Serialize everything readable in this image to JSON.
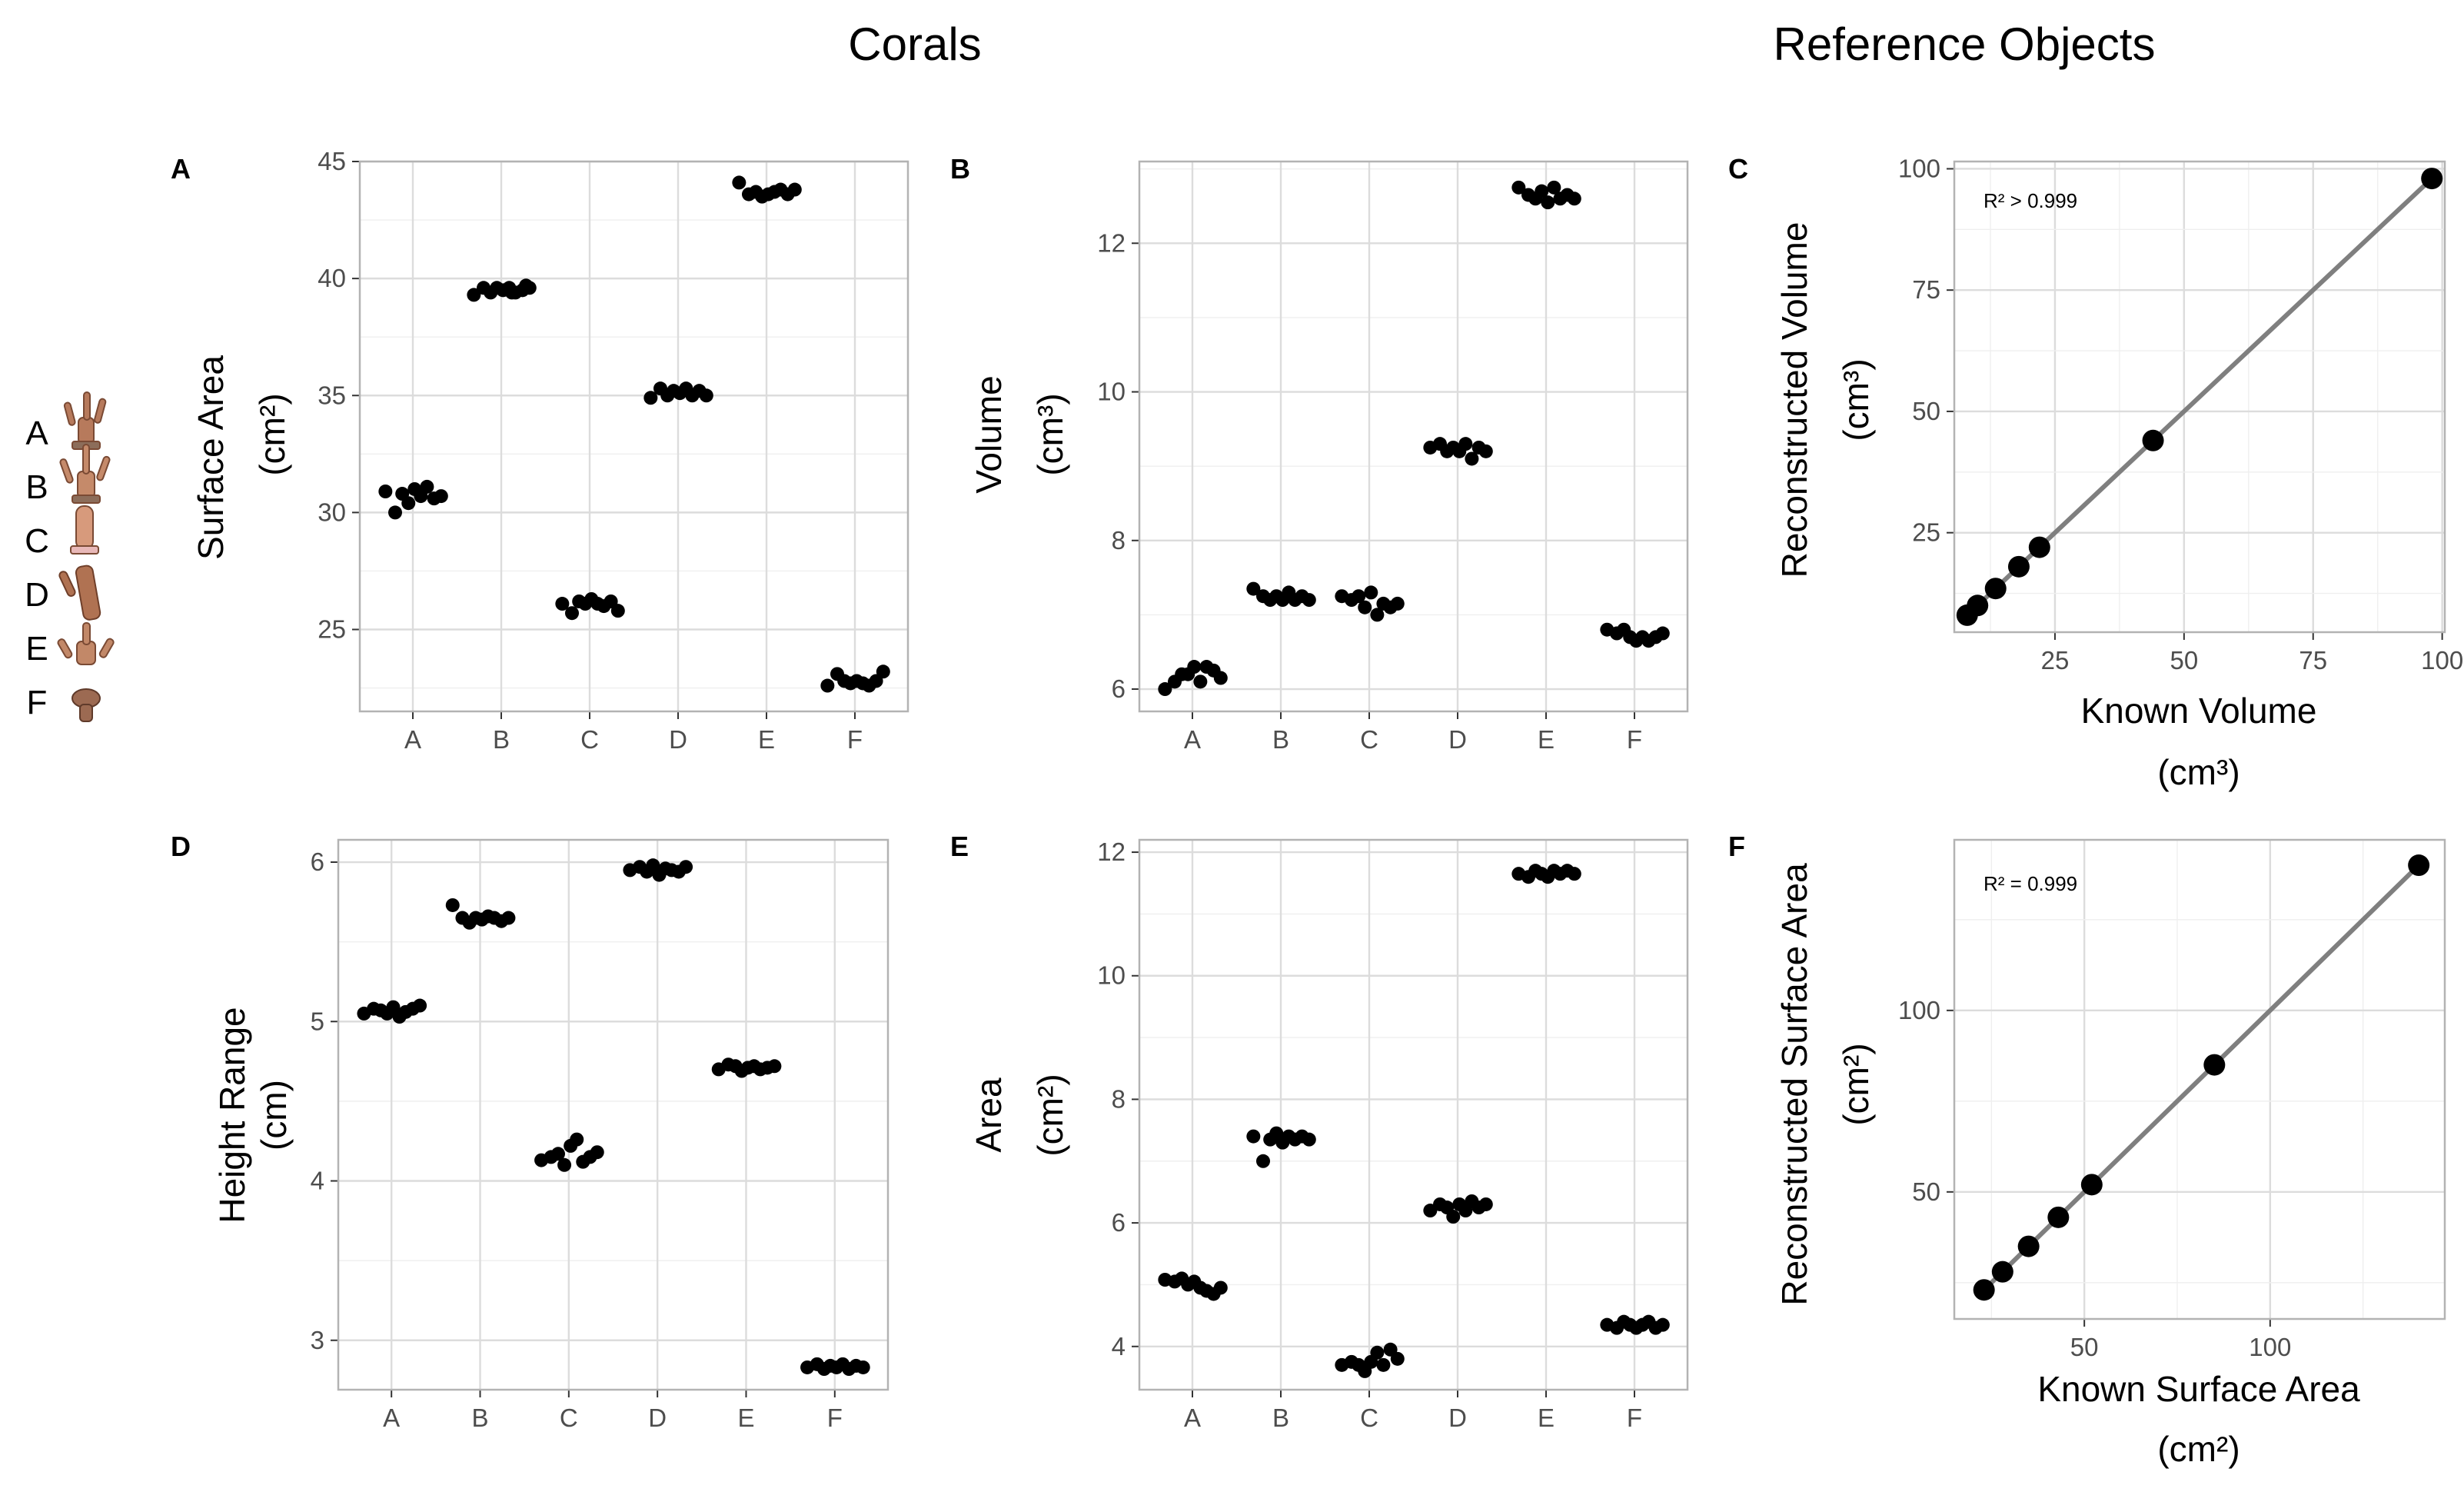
{
  "titles": {
    "corals": "Corals",
    "reference": "Reference Objects"
  },
  "legend": {
    "letters": [
      "A",
      "B",
      "C",
      "D",
      "E",
      "F"
    ]
  },
  "chart_data": [
    {
      "panel": "A",
      "type": "scatter",
      "subtype": "jitter",
      "ylabel": "Surface Area",
      "yunit": "(cm²)",
      "categories": [
        "A",
        "B",
        "C",
        "D",
        "E",
        "F"
      ],
      "ylim": [
        21.5,
        45
      ],
      "yticks": [
        25,
        30,
        35,
        40,
        45
      ],
      "values": [
        [
          30.9,
          30.0,
          30.8,
          30.4,
          31.0,
          30.7,
          31.1,
          30.6,
          30.7
        ],
        [
          39.3,
          39.6,
          39.4,
          39.6,
          39.5,
          39.6,
          39.4,
          39.5,
          39.6,
          39.4,
          39.7
        ],
        [
          26.1,
          25.7,
          26.2,
          26.1,
          26.3,
          26.1,
          26.0,
          26.2,
          25.8
        ],
        [
          34.9,
          35.3,
          35.0,
          35.2,
          35.1,
          35.3,
          35.0,
          35.2,
          35.0
        ],
        [
          44.1,
          43.6,
          43.7,
          43.5,
          43.6,
          43.7,
          43.8,
          43.6,
          43.8
        ],
        [
          22.6,
          23.1,
          22.8,
          22.7,
          22.8,
          22.7,
          22.6,
          22.8,
          23.2
        ]
      ]
    },
    {
      "panel": "B",
      "type": "scatter",
      "subtype": "jitter",
      "ylabel": "Volume",
      "yunit": "(cm³)",
      "categories": [
        "A",
        "B",
        "C",
        "D",
        "E",
        "F"
      ],
      "ylim": [
        5.7,
        13.1
      ],
      "yticks": [
        6,
        8,
        10,
        12
      ],
      "values": [
        [
          6.0,
          6.1,
          6.2,
          6.2,
          6.3,
          6.1,
          6.3,
          6.25,
          6.15
        ],
        [
          7.35,
          7.25,
          7.2,
          7.25,
          7.2,
          7.3,
          7.2,
          7.25,
          7.2
        ],
        [
          7.25,
          7.2,
          7.25,
          7.1,
          7.3,
          7.0,
          7.15,
          7.1,
          7.15
        ],
        [
          9.25,
          9.3,
          9.2,
          9.25,
          9.2,
          9.3,
          9.1,
          9.25,
          9.2
        ],
        [
          12.75,
          12.65,
          12.6,
          12.7,
          12.55,
          12.75,
          12.6,
          12.65,
          12.6
        ],
        [
          6.8,
          6.75,
          6.8,
          6.7,
          6.65,
          6.7,
          6.65,
          6.7,
          6.75
        ]
      ]
    },
    {
      "panel": "C",
      "type": "scatter",
      "fit": "linear",
      "xlabel": "Known Volume",
      "xunit": "(cm³)",
      "ylabel": "Reconstructed Volume",
      "yunit": "(cm³)",
      "annotation": "R² > 0.999",
      "xlim": [
        5.5,
        100.5
      ],
      "ylim": [
        4.5,
        101.5
      ],
      "xticks": [
        25,
        50,
        75,
        100
      ],
      "yticks": [
        25,
        50,
        75,
        100
      ],
      "x": [
        8,
        10,
        13.5,
        18,
        22,
        44,
        98
      ],
      "y": [
        8,
        10,
        13.5,
        18,
        22,
        44,
        98
      ]
    },
    {
      "panel": "D",
      "type": "scatter",
      "subtype": "jitter",
      "ylabel": "Height Range",
      "yunit": "(cm)",
      "categories": [
        "A",
        "B",
        "C",
        "D",
        "E",
        "F"
      ],
      "ylim": [
        2.69,
        6.14
      ],
      "yticks": [
        3,
        4,
        5,
        6
      ],
      "values": [
        [
          5.05,
          5.08,
          5.07,
          5.05,
          5.09,
          5.03,
          5.06,
          5.08,
          5.1
        ],
        [
          5.73,
          5.65,
          5.62,
          5.65,
          5.64,
          5.66,
          5.65,
          5.63,
          5.65
        ],
        [
          4.13,
          4.15,
          4.17,
          4.1,
          4.22,
          4.26,
          4.12,
          4.15,
          4.18
        ],
        [
          5.95,
          5.97,
          5.94,
          5.98,
          5.92,
          5.96,
          5.95,
          5.94,
          5.97
        ],
        [
          4.7,
          4.73,
          4.72,
          4.69,
          4.71,
          4.72,
          4.7,
          4.71,
          4.72
        ],
        [
          2.83,
          2.85,
          2.82,
          2.84,
          2.83,
          2.85,
          2.82,
          2.84,
          2.83
        ]
      ]
    },
    {
      "panel": "E",
      "type": "scatter",
      "subtype": "jitter",
      "ylabel": "Area",
      "yunit": "(cm²)",
      "categories": [
        "A",
        "B",
        "C",
        "D",
        "E",
        "F"
      ],
      "ylim": [
        3.3,
        12.2
      ],
      "yticks": [
        4,
        6,
        8,
        10,
        12
      ],
      "values": [
        [
          5.08,
          5.05,
          5.1,
          5.0,
          5.05,
          4.95,
          4.9,
          4.85,
          4.95
        ],
        [
          7.4,
          7.0,
          7.35,
          7.45,
          7.3,
          7.4,
          7.35,
          7.4,
          7.35
        ],
        [
          3.7,
          3.75,
          3.7,
          3.6,
          3.75,
          3.9,
          3.7,
          3.95,
          3.8
        ],
        [
          6.2,
          6.3,
          6.25,
          6.1,
          6.3,
          6.2,
          6.35,
          6.25,
          6.3
        ],
        [
          11.65,
          11.6,
          11.7,
          11.65,
          11.6,
          11.7,
          11.65,
          11.7,
          11.65
        ],
        [
          4.35,
          4.3,
          4.4,
          4.35,
          4.3,
          4.35,
          4.4,
          4.3,
          4.35
        ]
      ]
    },
    {
      "panel": "F",
      "type": "scatter",
      "fit": "linear",
      "xlabel": "Known Surface Area",
      "xunit": "(cm²)",
      "ylabel": "Reconstructed Surface Area",
      "yunit": "(cm²)",
      "annotation": "R² = 0.999",
      "xlim": [
        15,
        147
      ],
      "ylim": [
        15,
        147
      ],
      "xticks": [
        50,
        100
      ],
      "yticks": [
        50,
        100
      ],
      "x": [
        23,
        28,
        35,
        43,
        52,
        85,
        140
      ],
      "y": [
        23,
        28,
        35,
        43,
        52,
        85,
        140
      ]
    }
  ]
}
